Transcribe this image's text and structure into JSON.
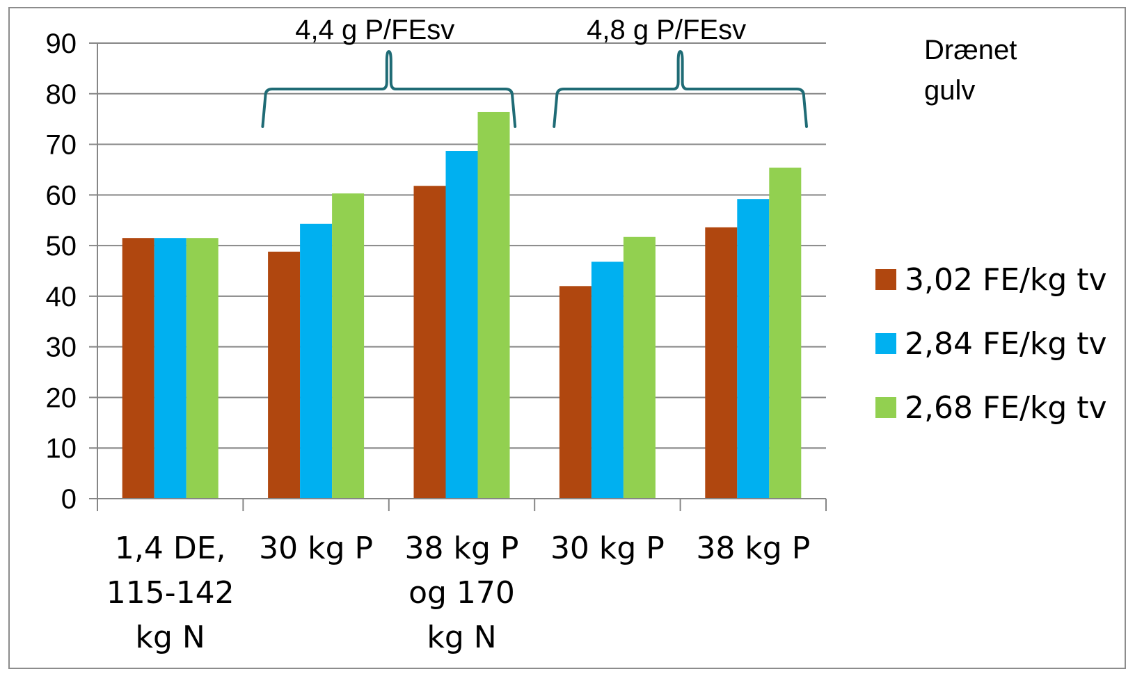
{
  "chart_data": {
    "type": "bar",
    "categories": [
      [
        "1,4 DE,",
        "115-142",
        "kg N"
      ],
      [
        "30 kg P"
      ],
      [
        "38 kg P",
        "og 170",
        "kg N"
      ],
      [
        "30 kg P"
      ],
      [
        "38 kg P"
      ]
    ],
    "series": [
      {
        "name": "3,02 FE/kg tv",
        "color": "#b0470f",
        "values": [
          51.5,
          48.8,
          61.8,
          42.0,
          53.6
        ]
      },
      {
        "name": "2,84 FE/kg tv",
        "color": "#00b0f0",
        "values": [
          51.5,
          54.3,
          68.7,
          46.8,
          59.2
        ]
      },
      {
        "name": "2,68 FE/kg tv",
        "color": "#92d050",
        "values": [
          51.5,
          60.3,
          76.4,
          51.7,
          65.4
        ]
      }
    ],
    "ylim": [
      0,
      90
    ],
    "yticks": [
      0,
      10,
      20,
      30,
      40,
      50,
      60,
      70,
      80,
      90
    ],
    "grid": true,
    "legend_position": "right",
    "annotations": [
      {
        "text": "4,4 g P/FEsv",
        "spans_categories": [
          1,
          2
        ]
      },
      {
        "text": "4,8 g P/FEsv",
        "spans_categories": [
          3,
          4
        ]
      }
    ],
    "side_label": [
      "Drænet",
      "gulv"
    ],
    "bracket_color": "#1f6b75",
    "gridline_color": "#868686"
  }
}
